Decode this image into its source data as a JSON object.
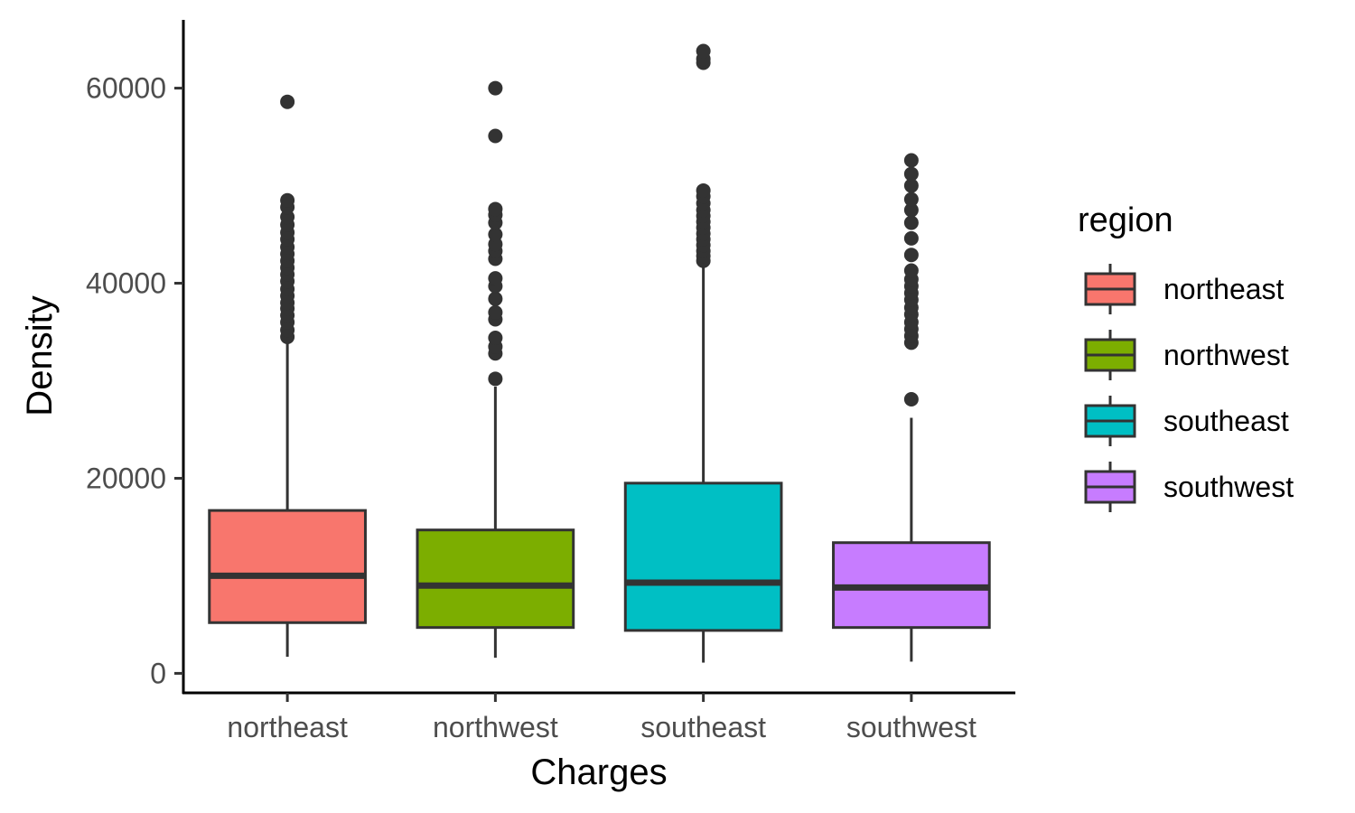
{
  "chart_data": {
    "type": "boxplot",
    "xlabel": "Charges",
    "ylabel": "Density",
    "ylim": [
      -2000,
      67000
    ],
    "yticks": [
      0,
      20000,
      40000,
      60000
    ],
    "grid": false,
    "legend": {
      "title": "region",
      "position": "right"
    },
    "categories": [
      "northeast",
      "northwest",
      "southeast",
      "southwest"
    ],
    "series": [
      {
        "name": "northeast",
        "color": "#F8766D",
        "min": 1700,
        "q1": 5200,
        "median": 10000,
        "q3": 16700,
        "max": 33800,
        "outliers": [
          34500,
          35200,
          36000,
          36700,
          37400,
          38000,
          38700,
          39400,
          40200,
          40900,
          41600,
          42300,
          43000,
          43700,
          44500,
          45200,
          46000,
          46800,
          47800,
          48500,
          58600
        ]
      },
      {
        "name": "northwest",
        "color": "#7CAE00",
        "min": 1600,
        "q1": 4700,
        "median": 9000,
        "q3": 14700,
        "max": 29400,
        "outliers": [
          30200,
          32800,
          33500,
          34400,
          36300,
          37000,
          38400,
          39700,
          40500,
          42500,
          43300,
          44000,
          45000,
          46200,
          47000,
          47600,
          55100,
          60000
        ]
      },
      {
        "name": "southeast",
        "color": "#00BFC4",
        "min": 1100,
        "q1": 4400,
        "median": 9300,
        "q3": 19500,
        "max": 42000,
        "outliers": [
          42300,
          42800,
          43300,
          43900,
          44500,
          45100,
          45700,
          46300,
          46900,
          47500,
          48200,
          48900,
          49500,
          62600,
          63000,
          63800
        ]
      },
      {
        "name": "southwest",
        "color": "#C77CFF",
        "min": 1200,
        "q1": 4700,
        "median": 8800,
        "q3": 13400,
        "max": 26200,
        "outliers": [
          28100,
          33900,
          34600,
          35300,
          36000,
          36800,
          37500,
          38300,
          39000,
          39700,
          40400,
          41300,
          42900,
          44600,
          46200,
          47500,
          48600,
          50000,
          51200,
          52600
        ]
      }
    ]
  }
}
